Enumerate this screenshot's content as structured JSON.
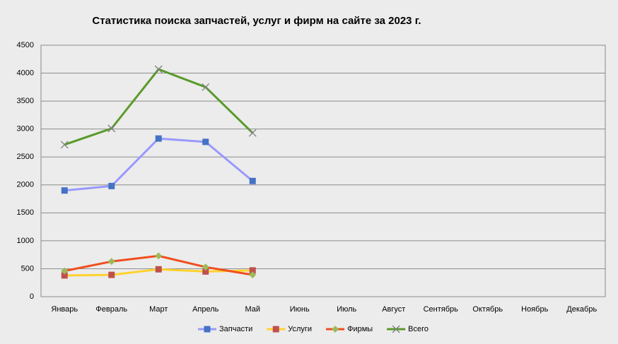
{
  "chart_data": {
    "type": "line",
    "title": "Статистика поиска запчастей, услуг и фирм на сайте за 2023 г.",
    "categories": [
      "Январь",
      "Февраль",
      "Март",
      "Апрель",
      "Май",
      "Июнь",
      "Июль",
      "Август",
      "Сентябрь",
      "Октябрь",
      "Ноябрь",
      "Декабрь"
    ],
    "series": [
      {
        "name": "Запчасти",
        "color": "#9999ff",
        "marker_color": "#4472c4",
        "marker": "square",
        "values": [
          1900,
          1980,
          2830,
          2770,
          2070,
          null,
          null,
          null,
          null,
          null,
          null,
          null
        ]
      },
      {
        "name": "Услуги",
        "color": "#ffd22e",
        "marker_color": "#c0504d",
        "marker": "square",
        "values": [
          380,
          390,
          490,
          450,
          470,
          null,
          null,
          null,
          null,
          null,
          null,
          null
        ]
      },
      {
        "name": "Фирмы",
        "color": "#f04e1f",
        "marker_color": "#9bbb59",
        "marker": "diamond",
        "values": [
          460,
          630,
          730,
          530,
          390,
          null,
          null,
          null,
          null,
          null,
          null,
          null
        ]
      },
      {
        "name": "Всего",
        "color": "#5a9a2a",
        "marker_color": "#7f7f7f",
        "marker": "x",
        "values": [
          2720,
          3010,
          4070,
          3750,
          2930,
          null,
          null,
          null,
          null,
          null,
          null,
          null
        ]
      }
    ],
    "ylim": [
      0,
      4500
    ],
    "yticks": [
      0,
      500,
      1000,
      1500,
      2000,
      2500,
      3000,
      3500,
      4000,
      4500
    ],
    "grid": true,
    "legend": "bottom"
  }
}
